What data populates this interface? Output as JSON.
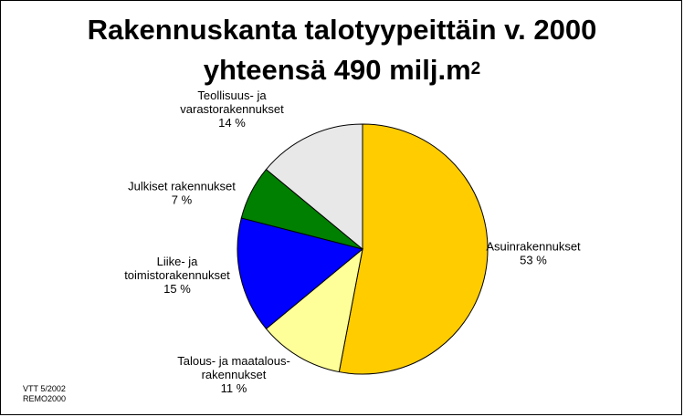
{
  "chart_data": {
    "type": "pie",
    "title_line1": "Rakennuskanta talotyypeittäin v. 2000",
    "title_line2": "yhteensä 490 milj.m",
    "title_sup": "2",
    "slices": [
      {
        "label_lines": [
          "Asuinrakennukset"
        ],
        "value": 53,
        "value_text": "53 %",
        "color": "#ffcc00"
      },
      {
        "label_lines": [
          "Talous- ja maatalous-",
          "rakennukset"
        ],
        "value": 11,
        "value_text": "11 %",
        "color": "#ffff99"
      },
      {
        "label_lines": [
          "Liike- ja",
          "toimistorakennukset"
        ],
        "value": 15,
        "value_text": "15 %",
        "color": "#0000ff"
      },
      {
        "label_lines": [
          "Julkiset rakennukset"
        ],
        "value": 7,
        "value_text": "7 %",
        "color": "#008000"
      },
      {
        "label_lines": [
          "Teollisuus- ja",
          "varastorakennukset"
        ],
        "value": 14,
        "value_text": "14 %",
        "color": "#e8e8e8"
      }
    ]
  },
  "footer": {
    "line1": "VTT 5/2002",
    "line2": "REMO2000"
  }
}
